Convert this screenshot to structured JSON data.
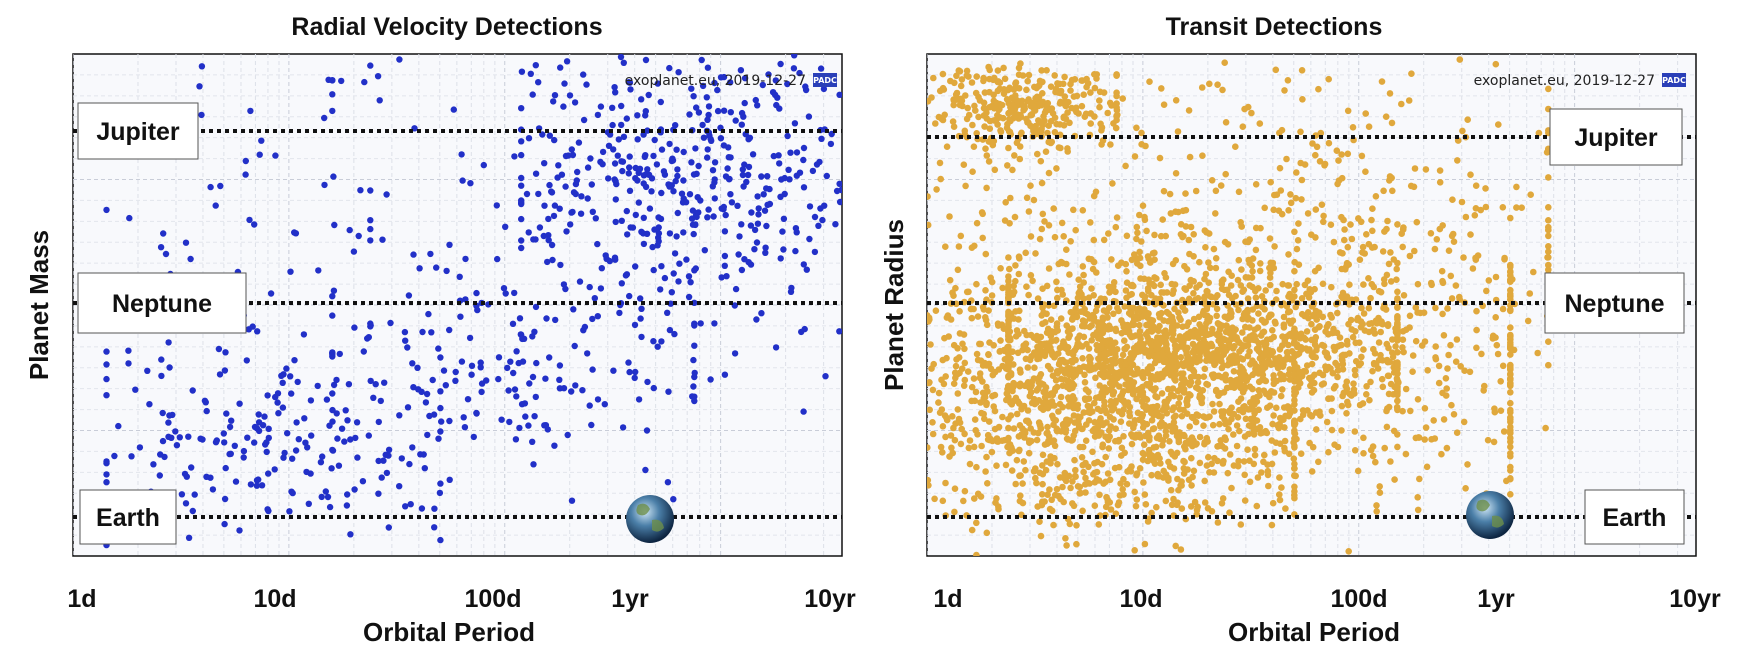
{
  "chart_data": [
    {
      "type": "scatter",
      "title": "Radial Velocity Detections",
      "xlabel": "Orbital Period",
      "ylabel": "Planet Mass",
      "x_scale": "log",
      "x_ticks": [
        "1d",
        "10d",
        "100d",
        "1yr",
        "10yr"
      ],
      "x_tick_days": [
        1,
        10,
        100,
        365,
        3650
      ],
      "xlim_days": [
        1,
        3650
      ],
      "y_scale": "log",
      "reference_lines": [
        {
          "label": "Jupiter",
          "style": "dotted"
        },
        {
          "label": "Neptune",
          "style": "dotted"
        },
        {
          "label": "Earth",
          "style": "dotted"
        }
      ],
      "credit": "exoplanet.eu, 2019-12-27",
      "logo_text": "PADC",
      "grid": true,
      "point_color": "#2230c8",
      "series": [
        {
          "clusters": [
            {
              "x_range_days": [
                150,
                3650
              ],
              "y_pos": [
                0.25,
                0.2
              ],
              "n": 380
            },
            {
              "x_range_days": [
                30,
                3650
              ],
              "y_pos": [
                0.4,
                0.3
              ],
              "n": 160
            },
            {
              "x_range_days": [
                1.8,
                40
              ],
              "y_pos": [
                0.78,
                0.15
              ],
              "n": 200
            },
            {
              "x_range_days": [
                20,
                600
              ],
              "y_pos": [
                0.62,
                0.2
              ],
              "n": 140
            },
            {
              "x_range_days": [
                1.8,
                30
              ],
              "y_pos": [
                0.4,
                0.3
              ],
              "n": 60
            },
            {
              "x_range_days": [
                20,
                3650
              ],
              "y_pos": [
                0.05,
                0.08
              ],
              "n": 40
            }
          ]
        }
      ]
    },
    {
      "type": "scatter",
      "title": "Transit Detections",
      "xlabel": "Orbital Period",
      "ylabel": "Planet Radius",
      "x_scale": "log",
      "x_ticks": [
        "1d",
        "10d",
        "100d",
        "1yr",
        "10yr"
      ],
      "x_tick_days": [
        1,
        10,
        100,
        365,
        3650
      ],
      "xlim_days": [
        1,
        3650
      ],
      "y_scale": "log",
      "reference_lines": [
        {
          "label": "Jupiter",
          "style": "dotted"
        },
        {
          "label": "Neptune",
          "style": "dotted"
        },
        {
          "label": "Earth",
          "style": "dotted"
        }
      ],
      "credit": "exoplanet.eu, 2019-12-27",
      "logo_text": "PADC",
      "grid": true,
      "point_color": "#e0a83c",
      "series": [
        {
          "clusters": [
            {
              "x_range_days": [
                1.2,
                40
              ],
              "y_pos": [
                0.7,
                0.2
              ],
              "n": 1100
            },
            {
              "x_range_days": [
                3,
                120
              ],
              "y_pos": [
                0.58,
                0.13
              ],
              "n": 900
            },
            {
              "x_range_days": [
                1,
                400
              ],
              "y_pos": [
                0.62,
                0.25
              ],
              "n": 900
            },
            {
              "x_range_days": [
                1.2,
                6
              ],
              "y_pos": [
                0.1,
                0.07
              ],
              "n": 320
            },
            {
              "x_range_days": [
                1,
                600
              ],
              "y_pos": [
                0.35,
                0.3
              ],
              "n": 500
            }
          ]
        }
      ]
    }
  ]
}
